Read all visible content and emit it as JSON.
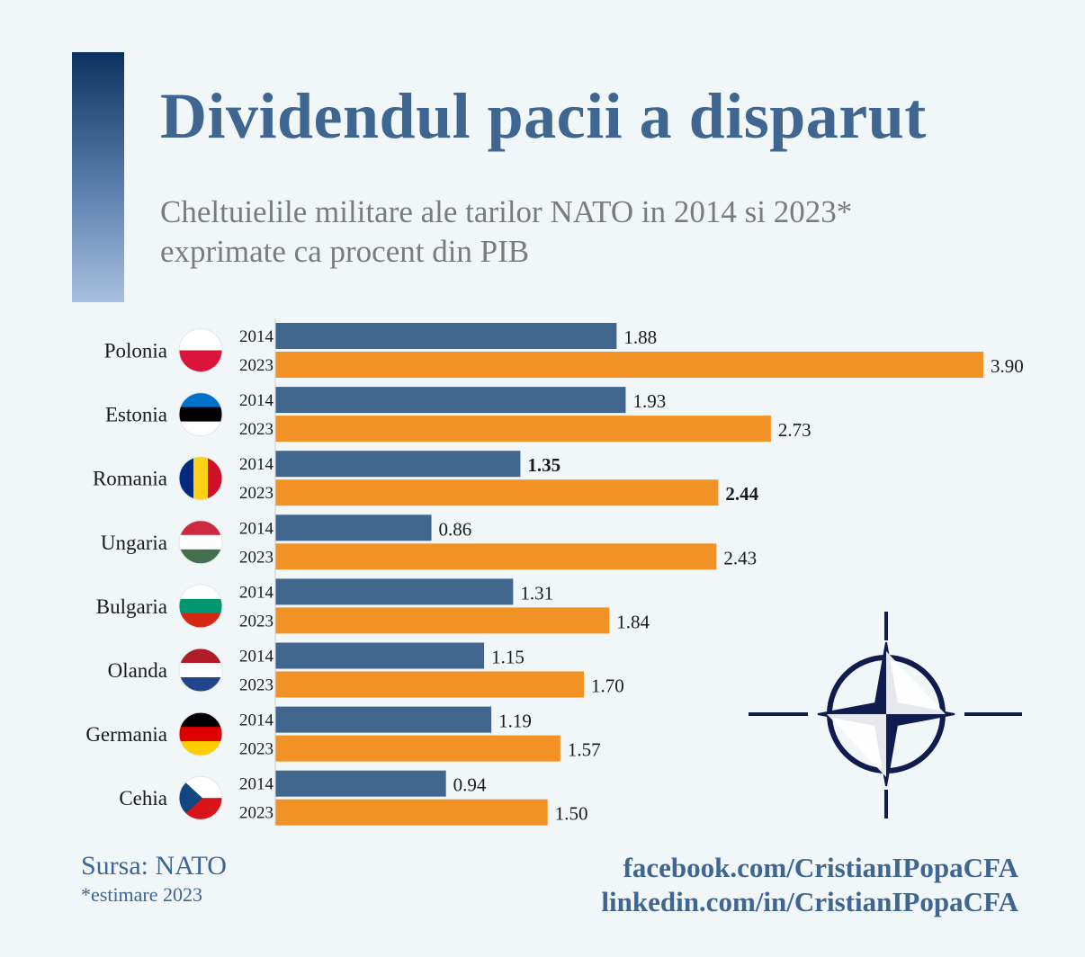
{
  "title": "Dividendul pacii a disparut",
  "subtitle_line1": "Cheltuielile militare ale tarilor NATO in 2014 si 2023*",
  "subtitle_line2": "exprimate ca procent din PIB",
  "source": "Sursa: NATO",
  "note": "*estimare 2023",
  "links": [
    "facebook.com/CristianIPopaCFA",
    "linkedin.com/in/CristianIPopaCFA"
  ],
  "colors": {
    "series_2014": "#41678f",
    "series_2023": "#f39224",
    "title": "#3e6691",
    "nato_navy": "#0f1c4d"
  },
  "flag_icons": [
    "poland-flag-icon",
    "estonia-flag-icon",
    "romania-flag-icon",
    "hungary-flag-icon",
    "bulgaria-flag-icon",
    "netherlands-flag-icon",
    "germany-flag-icon",
    "czechia-flag-icon"
  ],
  "logo_icon": "nato-compass-star-icon",
  "chart_data": {
    "type": "bar",
    "orientation": "horizontal",
    "categories": [
      "Polonia",
      "Estonia",
      "Romania",
      "Ungaria",
      "Bulgaria",
      "Olanda",
      "Germania",
      "Cehia"
    ],
    "series": [
      {
        "name": "2014",
        "values": [
          1.88,
          1.93,
          1.35,
          0.86,
          1.31,
          1.15,
          1.19,
          0.94
        ],
        "labels": [
          "1.88",
          "1.93",
          "1.35",
          "0.86",
          "1.31",
          "1.15",
          "1.19",
          "0.94"
        ]
      },
      {
        "name": "2023",
        "values": [
          3.9,
          2.73,
          2.44,
          2.43,
          1.84,
          1.7,
          1.57,
          1.5
        ],
        "labels": [
          "3.90",
          "2.73",
          "2.44",
          "2.43",
          "1.84",
          "1.70",
          "1.57",
          "1.50"
        ]
      }
    ],
    "highlight_category": "Romania",
    "xlim": [
      0,
      3.9
    ],
    "grid": false,
    "legend": "none"
  }
}
